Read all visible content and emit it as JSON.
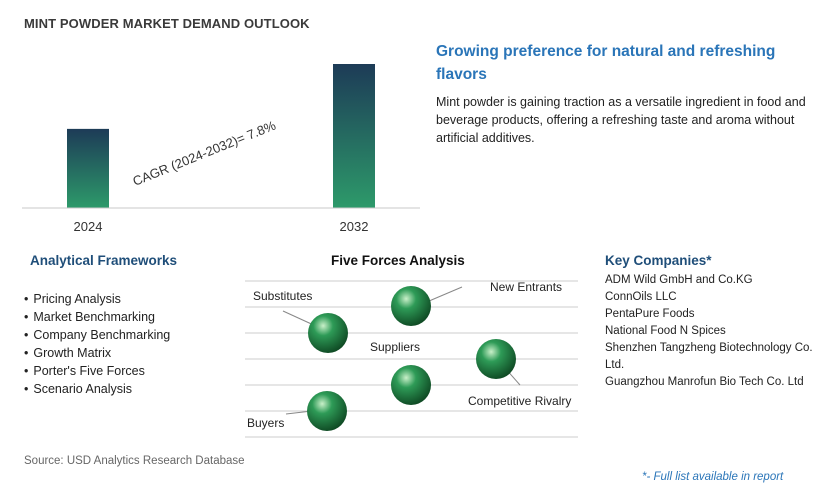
{
  "title": "MINT POWDER MARKET DEMAND OUTLOOK",
  "chart_data": {
    "type": "bar",
    "categories": [
      "2024",
      "2032"
    ],
    "values": [
      1.0,
      1.82
    ],
    "title": "MINT POWDER MARKET DEMAND OUTLOOK",
    "annotation": "CAGR (2024-2032)=   7.8%",
    "xlabel": "",
    "ylabel": "",
    "grid": false,
    "colors": {
      "bar_top": "#1d3b57",
      "bar_bottom": "#2d9a6a"
    }
  },
  "insight": {
    "headline": "Growing preference for natural and refreshing flavors",
    "description": "Mint powder is gaining traction as a versatile ingredient in food and beverage products, offering a refreshing taste and aroma without artificial additives."
  },
  "analytical_frameworks": {
    "heading": "Analytical Frameworks",
    "items": [
      "Pricing Analysis",
      "Market Benchmarking",
      "Company Benchmarking",
      "Growth Matrix",
      "Porter's Five Forces",
      "Scenario Analysis"
    ]
  },
  "five_forces": {
    "heading": "Five Forces Analysis",
    "labels": {
      "substitutes": "Substitutes",
      "new_entrants": "New Entrants",
      "suppliers": "Suppliers",
      "competitive_rivalry": "Competitive Rivalry",
      "buyers": "Buyers"
    },
    "sphere_color": "#2e9b57"
  },
  "key_companies": {
    "heading": "Key Companies*",
    "items": [
      "ADM Wild GmbH and Co.KG",
      "ConnOils LLC",
      "PentaPure Foods",
      "National Food N Spices",
      "Shenzhen Tangzheng Biotechnology Co. Ltd.",
      "Guangzhou Manrofun Bio Tech Co. Ltd"
    ]
  },
  "source": "Source: USD Analytics Research Database",
  "footnote": "*- Full list available in report"
}
